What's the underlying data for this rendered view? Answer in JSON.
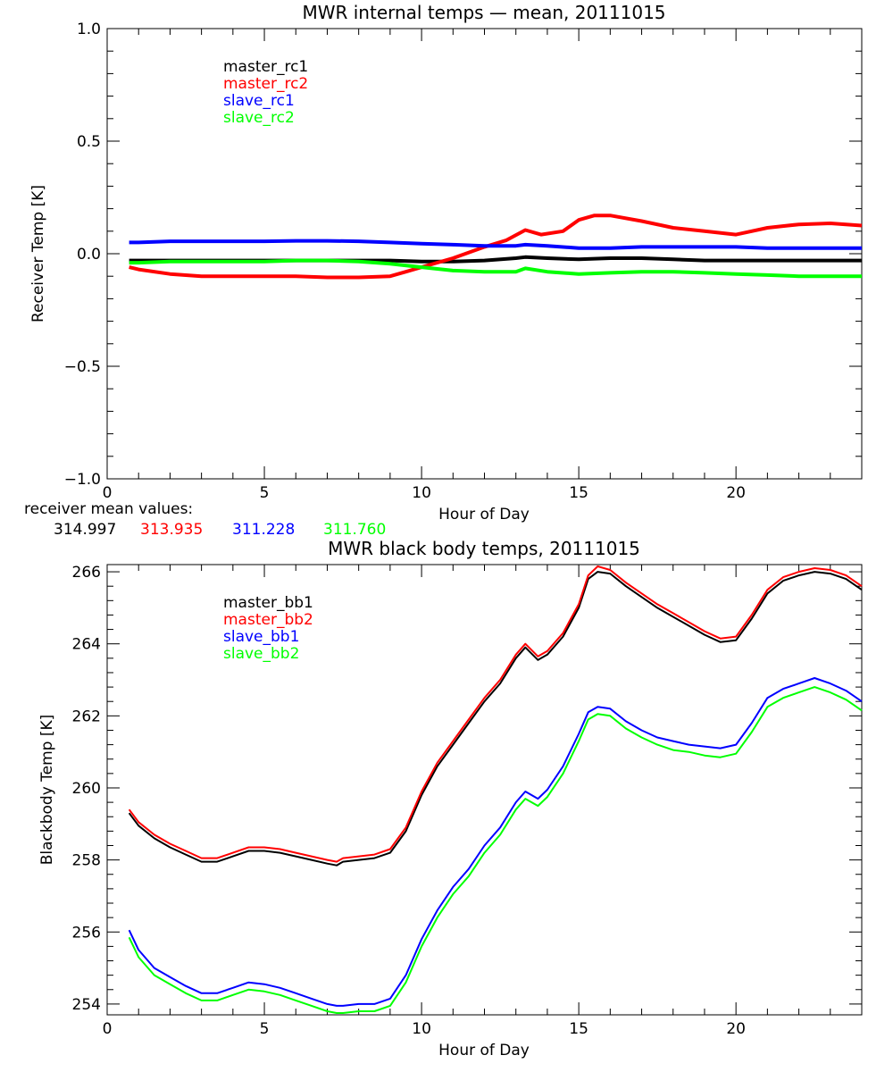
{
  "chart_data": [
    {
      "type": "line",
      "title": "MWR internal temps — mean, 20111015",
      "xlabel": "Hour of Day",
      "ylabel": "Receiver Temp [K]",
      "xlim": [
        0,
        24
      ],
      "ylim": [
        -1.0,
        1.0
      ],
      "xticks": [
        0,
        5,
        10,
        15,
        20
      ],
      "xtick_labels": [
        "0",
        "5",
        "10",
        "15",
        "20"
      ],
      "yticks": [
        -1.0,
        -0.5,
        0.0,
        0.5,
        1.0
      ],
      "ytick_labels": [
        "−1.0",
        "−0.5",
        "0.0",
        "0.5",
        "1.0"
      ],
      "grid": false,
      "legend_position": "top-left",
      "series": [
        {
          "name": "master_rc1",
          "color": "#000000",
          "x": [
            0.7,
            1.0,
            2.0,
            3.0,
            4.0,
            5.0,
            6.0,
            7.0,
            8.0,
            9.0,
            10.0,
            11.0,
            12.0,
            13.0,
            13.3,
            14.0,
            15.0,
            16.0,
            17.0,
            18.0,
            19.0,
            20.0,
            21.0,
            22.0,
            23.0,
            24.0
          ],
          "y": [
            -0.03,
            -0.03,
            -0.03,
            -0.03,
            -0.03,
            -0.03,
            -0.03,
            -0.03,
            -0.03,
            -0.03,
            -0.035,
            -0.035,
            -0.03,
            -0.02,
            -0.015,
            -0.02,
            -0.025,
            -0.02,
            -0.02,
            -0.025,
            -0.03,
            -0.03,
            -0.03,
            -0.03,
            -0.03,
            -0.03
          ]
        },
        {
          "name": "master_rc2",
          "color": "#ff0000",
          "x": [
            0.7,
            1.0,
            2.0,
            3.0,
            4.0,
            5.0,
            6.0,
            7.0,
            8.0,
            9.0,
            9.5,
            10.0,
            11.0,
            12.0,
            12.7,
            13.3,
            13.8,
            14.5,
            15.0,
            15.5,
            16.0,
            17.0,
            18.0,
            19.0,
            20.0,
            21.0,
            22.0,
            23.0,
            24.0
          ],
          "y": [
            -0.06,
            -0.07,
            -0.09,
            -0.1,
            -0.1,
            -0.1,
            -0.1,
            -0.105,
            -0.105,
            -0.1,
            -0.08,
            -0.06,
            -0.02,
            0.03,
            0.06,
            0.105,
            0.085,
            0.1,
            0.15,
            0.17,
            0.17,
            0.145,
            0.115,
            0.1,
            0.085,
            0.115,
            0.13,
            0.135,
            0.125
          ]
        },
        {
          "name": "slave_rc1",
          "color": "#0000ff",
          "x": [
            0.7,
            1.0,
            2.0,
            3.0,
            4.0,
            5.0,
            6.0,
            7.0,
            8.0,
            9.0,
            10.0,
            11.0,
            12.0,
            13.0,
            13.3,
            14.0,
            15.0,
            16.0,
            17.0,
            18.0,
            19.0,
            20.0,
            21.0,
            22.0,
            23.0,
            24.0
          ],
          "y": [
            0.05,
            0.05,
            0.055,
            0.055,
            0.055,
            0.055,
            0.057,
            0.057,
            0.055,
            0.05,
            0.045,
            0.04,
            0.035,
            0.035,
            0.04,
            0.035,
            0.025,
            0.025,
            0.03,
            0.03,
            0.03,
            0.03,
            0.025,
            0.025,
            0.025,
            0.025
          ]
        },
        {
          "name": "slave_rc2",
          "color": "#00ff00",
          "x": [
            0.7,
            1.0,
            2.0,
            3.0,
            4.0,
            5.0,
            6.0,
            7.0,
            8.0,
            9.0,
            10.0,
            11.0,
            12.0,
            13.0,
            13.3,
            14.0,
            15.0,
            16.0,
            17.0,
            18.0,
            19.0,
            20.0,
            21.0,
            22.0,
            23.0,
            24.0
          ],
          "y": [
            -0.04,
            -0.04,
            -0.035,
            -0.035,
            -0.035,
            -0.035,
            -0.03,
            -0.03,
            -0.035,
            -0.045,
            -0.06,
            -0.075,
            -0.08,
            -0.08,
            -0.065,
            -0.08,
            -0.09,
            -0.085,
            -0.08,
            -0.08,
            -0.085,
            -0.09,
            -0.095,
            -0.1,
            -0.1,
            -0.1
          ]
        }
      ]
    },
    {
      "type": "line",
      "title": "MWR black body temps, 20111015",
      "xlabel": "Hour of Day",
      "ylabel": "Blackbody Temp [K]",
      "xlim": [
        0,
        24
      ],
      "ylim": [
        253.7,
        266.2
      ],
      "xticks": [
        0,
        5,
        10,
        15,
        20
      ],
      "xtick_labels": [
        "0",
        "5",
        "10",
        "15",
        "20"
      ],
      "yticks": [
        254,
        256,
        258,
        260,
        262,
        264,
        266
      ],
      "ytick_labels": [
        "254",
        "256",
        "258",
        "260",
        "262",
        "264",
        "266"
      ],
      "grid": false,
      "legend_position": "top-left",
      "series": [
        {
          "name": "master_bb1",
          "color": "#000000",
          "x": [
            0.7,
            1.0,
            1.5,
            2.0,
            2.5,
            3.0,
            3.5,
            4.0,
            4.5,
            5.0,
            5.5,
            6.0,
            6.5,
            7.0,
            7.3,
            7.5,
            8.0,
            8.5,
            9.0,
            9.5,
            10.0,
            10.5,
            11.0,
            11.5,
            12.0,
            12.5,
            13.0,
            13.3,
            13.7,
            14.0,
            14.5,
            15.0,
            15.3,
            15.6,
            16.0,
            16.5,
            17.0,
            17.5,
            18.0,
            18.5,
            19.0,
            19.5,
            20.0,
            20.5,
            21.0,
            21.5,
            22.0,
            22.5,
            23.0,
            23.5,
            24.0
          ],
          "y": [
            259.3,
            258.95,
            258.6,
            258.35,
            258.15,
            257.95,
            257.95,
            258.1,
            258.25,
            258.25,
            258.2,
            258.1,
            258.0,
            257.9,
            257.85,
            257.95,
            258.0,
            258.05,
            258.2,
            258.8,
            259.8,
            260.6,
            261.2,
            261.8,
            262.4,
            262.9,
            263.6,
            263.9,
            263.55,
            263.7,
            264.2,
            265.0,
            265.8,
            266.0,
            265.95,
            265.6,
            265.3,
            265.0,
            264.75,
            264.5,
            264.25,
            264.05,
            264.1,
            264.7,
            265.4,
            265.75,
            265.9,
            266.0,
            265.95,
            265.8,
            265.5
          ]
        },
        {
          "name": "master_bb2",
          "color": "#ff0000",
          "x": [
            0.7,
            1.0,
            1.5,
            2.0,
            2.5,
            3.0,
            3.5,
            4.0,
            4.5,
            5.0,
            5.5,
            6.0,
            6.5,
            7.0,
            7.3,
            7.5,
            8.0,
            8.5,
            9.0,
            9.5,
            10.0,
            10.5,
            11.0,
            11.5,
            12.0,
            12.5,
            13.0,
            13.3,
            13.7,
            14.0,
            14.5,
            15.0,
            15.3,
            15.6,
            16.0,
            16.5,
            17.0,
            17.5,
            18.0,
            18.5,
            19.0,
            19.5,
            20.0,
            20.5,
            21.0,
            21.5,
            22.0,
            22.5,
            23.0,
            23.5,
            24.0
          ],
          "y": [
            259.4,
            259.05,
            258.7,
            258.45,
            258.25,
            258.05,
            258.05,
            258.2,
            258.35,
            258.35,
            258.3,
            258.2,
            258.1,
            258.0,
            257.95,
            258.05,
            258.1,
            258.15,
            258.3,
            258.9,
            259.9,
            260.7,
            261.3,
            261.9,
            262.5,
            263.0,
            263.7,
            264.0,
            263.65,
            263.8,
            264.3,
            265.1,
            265.9,
            266.15,
            266.05,
            265.7,
            265.4,
            265.1,
            264.85,
            264.6,
            264.35,
            264.15,
            264.2,
            264.8,
            265.5,
            265.85,
            266.0,
            266.1,
            266.05,
            265.9,
            265.6
          ]
        },
        {
          "name": "slave_bb1",
          "color": "#0000ff",
          "x": [
            0.7,
            1.0,
            1.5,
            2.0,
            2.5,
            3.0,
            3.5,
            4.0,
            4.5,
            5.0,
            5.5,
            6.0,
            6.5,
            7.0,
            7.3,
            7.5,
            8.0,
            8.5,
            9.0,
            9.5,
            10.0,
            10.5,
            11.0,
            11.5,
            12.0,
            12.5,
            13.0,
            13.3,
            13.7,
            14.0,
            14.5,
            15.0,
            15.3,
            15.6,
            16.0,
            16.5,
            17.0,
            17.5,
            18.0,
            18.5,
            19.0,
            19.5,
            20.0,
            20.5,
            21.0,
            21.5,
            22.0,
            22.5,
            23.0,
            23.5,
            24.0
          ],
          "y": [
            256.05,
            255.5,
            255.0,
            254.75,
            254.5,
            254.3,
            254.3,
            254.45,
            254.6,
            254.55,
            254.45,
            254.3,
            254.15,
            254.0,
            253.95,
            253.95,
            254.0,
            254.0,
            254.15,
            254.8,
            255.8,
            256.6,
            257.25,
            257.75,
            258.4,
            258.9,
            259.6,
            259.9,
            259.7,
            259.95,
            260.6,
            261.5,
            262.1,
            262.25,
            262.2,
            261.85,
            261.6,
            261.4,
            261.3,
            261.2,
            261.15,
            261.1,
            261.2,
            261.8,
            262.5,
            262.75,
            262.9,
            263.05,
            262.9,
            262.7,
            262.4
          ]
        },
        {
          "name": "slave_bb2",
          "color": "#00ff00",
          "x": [
            0.7,
            1.0,
            1.5,
            2.0,
            2.5,
            3.0,
            3.5,
            4.0,
            4.5,
            5.0,
            5.5,
            6.0,
            6.5,
            7.0,
            7.3,
            7.5,
            8.0,
            8.5,
            9.0,
            9.5,
            10.0,
            10.5,
            11.0,
            11.5,
            12.0,
            12.5,
            13.0,
            13.3,
            13.7,
            14.0,
            14.5,
            15.0,
            15.3,
            15.6,
            16.0,
            16.5,
            17.0,
            17.5,
            18.0,
            18.5,
            19.0,
            19.5,
            20.0,
            20.5,
            21.0,
            21.5,
            22.0,
            22.5,
            23.0,
            23.5,
            24.0
          ],
          "y": [
            255.85,
            255.3,
            254.8,
            254.55,
            254.3,
            254.1,
            254.1,
            254.25,
            254.4,
            254.35,
            254.25,
            254.1,
            253.95,
            253.8,
            253.75,
            253.75,
            253.8,
            253.8,
            253.95,
            254.6,
            255.6,
            256.4,
            257.05,
            257.55,
            258.2,
            258.7,
            259.4,
            259.7,
            259.5,
            259.75,
            260.4,
            261.3,
            261.9,
            262.05,
            262.0,
            261.65,
            261.4,
            261.2,
            261.05,
            261.0,
            260.9,
            260.85,
            260.95,
            261.55,
            262.25,
            262.5,
            262.65,
            262.8,
            262.65,
            262.45,
            262.15
          ]
        }
      ]
    }
  ],
  "receiver_mean": {
    "label": "receiver mean values:",
    "values": [
      {
        "text": "314.997",
        "color": "#000000"
      },
      {
        "text": "313.935",
        "color": "#ff0000"
      },
      {
        "text": "311.228",
        "color": "#0000ff"
      },
      {
        "text": "311.760",
        "color": "#00ff00"
      }
    ]
  }
}
